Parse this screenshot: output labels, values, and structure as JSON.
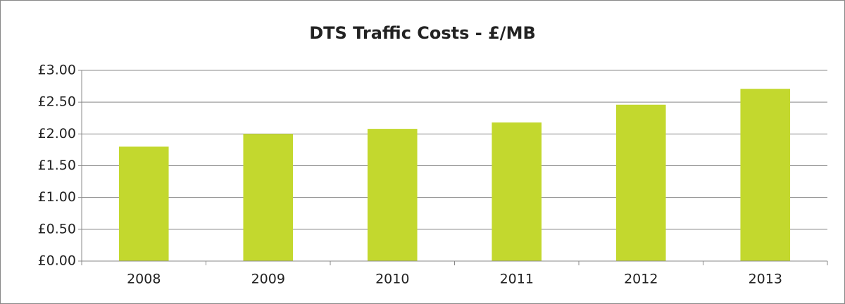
{
  "chart_data": {
    "type": "bar",
    "title": "DTS Traffic Costs - £/MB",
    "categories": [
      "2008",
      "2009",
      "2010",
      "2011",
      "2012",
      "2013"
    ],
    "values": [
      1.8,
      2.0,
      2.08,
      2.18,
      2.46,
      2.71
    ],
    "color": "#c3d82e",
    "ylim": [
      0,
      3
    ],
    "yticks": [
      {
        "value": 0,
        "label": "£0.00"
      },
      {
        "value": 0.5,
        "label": "£0.50"
      },
      {
        "value": 1,
        "label": "£1.00"
      },
      {
        "value": 1.5,
        "label": "£1.50"
      },
      {
        "value": 2,
        "label": "£2.00"
      },
      {
        "value": 2.5,
        "label": "£2.50"
      },
      {
        "value": 3,
        "label": "£3.00"
      }
    ],
    "grid": true
  }
}
